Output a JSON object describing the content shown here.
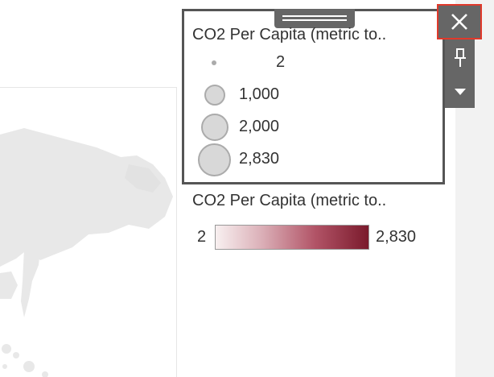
{
  "size_legend": {
    "title": "CO2 Per Capita (metric to..",
    "items": [
      {
        "label": "2",
        "value": 2
      },
      {
        "label": "1,000",
        "value": 1000
      },
      {
        "label": "2,000",
        "value": 2000
      },
      {
        "label": "2,830",
        "value": 2830
      }
    ],
    "circle_fill": "#d8d8d8",
    "circle_stroke": "#ababab"
  },
  "color_legend": {
    "title": "CO2 Per Capita (metric to..",
    "min_label": "2",
    "max_label": "2,830",
    "gradient_start": "#f8f0f0",
    "gradient_end": "#7a1a2c"
  },
  "toolbar": {
    "close_icon": "close-icon",
    "pin_icon": "pin-icon",
    "menu_icon": "chevron-down-icon",
    "highlight_color": "#e0392b",
    "background": "#666666"
  },
  "map": {
    "land_color": "#e8e8e8"
  }
}
